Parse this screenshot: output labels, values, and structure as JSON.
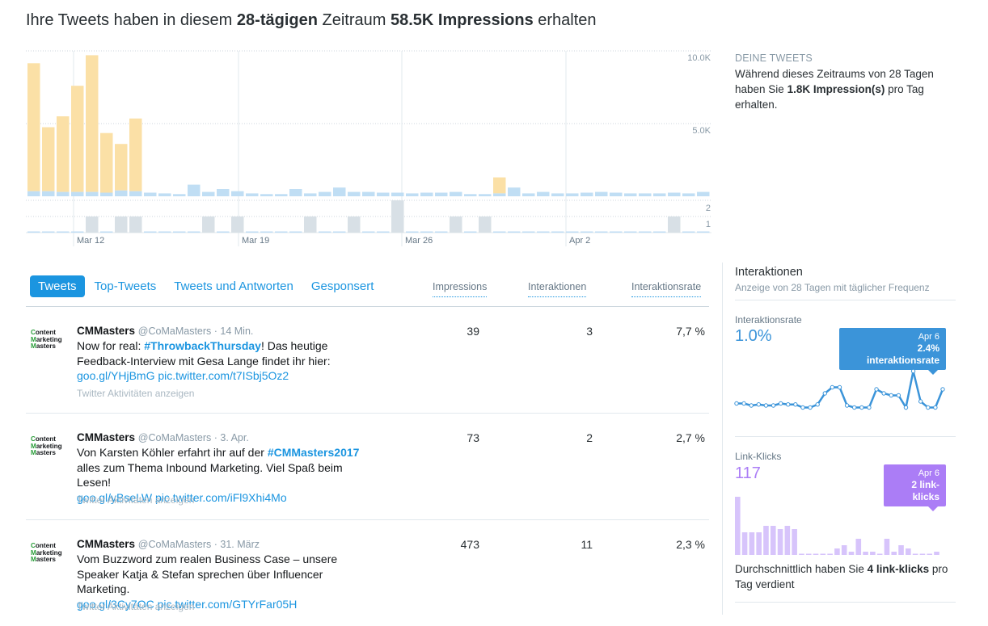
{
  "headline": {
    "pre": "Ihre Tweets haben in diesem ",
    "period": "28-tägigen",
    "mid": " Zeitraum ",
    "impressions": "58.5K Impressions",
    "post": " erhalten"
  },
  "chart_data": {
    "type": "bar",
    "title": "",
    "x_ticks": [
      "Mar 12",
      "Mar 19",
      "Mar 26",
      "Apr 2"
    ],
    "y_ticks": [
      "10.0K",
      "5.0K"
    ],
    "ylim": [
      0,
      10000
    ],
    "series": [
      {
        "name": "",
        "color": "#fbe0a6",
        "values": [
          8800,
          4400,
          5200,
          7300,
          9400,
          4100,
          3200,
          5000,
          0,
          0,
          0,
          0,
          0,
          0,
          0,
          0,
          0,
          0,
          0,
          0,
          0,
          0,
          0,
          0,
          0,
          0,
          0,
          0,
          0,
          0,
          0,
          0,
          1100,
          0,
          0,
          0,
          0,
          0,
          0,
          0,
          0,
          0,
          0,
          0,
          0,
          0,
          0
        ]
      },
      {
        "name": "",
        "color": "#c0def4",
        "values": [
          350,
          350,
          300,
          300,
          300,
          250,
          400,
          350,
          250,
          200,
          150,
          800,
          300,
          500,
          350,
          200,
          150,
          150,
          500,
          200,
          300,
          600,
          300,
          300,
          250,
          250,
          200,
          250,
          250,
          300,
          150,
          150,
          200,
          600,
          200,
          300,
          200,
          200,
          250,
          300,
          250,
          200,
          200,
          200,
          250,
          200,
          300
        ]
      },
      {
        "name": "",
        "color": "#d8e0e6",
        "values": [
          0,
          0,
          0,
          0,
          1,
          0,
          1,
          1,
          0,
          0,
          0,
          0,
          1,
          0,
          1,
          0,
          0,
          0,
          0,
          1,
          0,
          0,
          1,
          0,
          0,
          2,
          0,
          0,
          0,
          1,
          0,
          1,
          0,
          0,
          0,
          0,
          0,
          0,
          0,
          0,
          0,
          0,
          0,
          0,
          1,
          0,
          0
        ]
      },
      {
        "name": "",
        "y_ticks": [
          "2",
          "1"
        ]
      }
    ]
  },
  "your_tweets": {
    "caption": "DEINE TWEETS",
    "line1": "Während dieses Zeitraums von 28 Tagen haben Sie ",
    "value": "1.8K Impression(s)",
    "line2": " pro Tag erhalten."
  },
  "tabs": [
    "Tweets",
    "Top-Tweets",
    "Tweets und Antworten",
    "Gesponsert"
  ],
  "columns": [
    "Impressions",
    "Interaktionen",
    "Interaktionsrate"
  ],
  "logo": {
    "l1": "C",
    "l1b": "ontent",
    "l2": "M",
    "l2b": "arketing",
    "l3": "M",
    "l3b": "asters"
  },
  "tweets": [
    {
      "name": "CMMasters",
      "handle": "@CoMaMasters · 14 Min.",
      "text_pre": "Now for real: ",
      "tag": "#ThrowbackThursday",
      "text_post": "! Das heutige Feedback-Interview mit Gesa Lange findet ihr hier:",
      "link1": "goo.gl/YHjBmG",
      "link2": "pic.twitter.com/t7ISbj5Oz2",
      "activity": "Twitter Aktivitäten anzeigen",
      "impressions": "39",
      "interactions": "3",
      "rate": "7,7 %"
    },
    {
      "name": "CMMasters",
      "handle": "@CoMaMasters · 3. Apr.",
      "text_pre": "Von Karsten Köhler erfahrt ihr auf der ",
      "tag": "#CMMasters2017",
      "text_post": " alles zum Thema Inbound Marketing. Viel Spaß beim Lesen!",
      "link1": "goo.gl/yBseLW",
      "link2": "pic.twitter.com/iFl9Xhi4Mo",
      "activity": "Twitter Aktivitäten anzeigen",
      "impressions": "73",
      "interactions": "2",
      "rate": "2,7 %"
    },
    {
      "name": "CMMasters",
      "handle": "@CoMaMasters · 31. März",
      "text_pre": "Vom Buzzword zum realen Business Case – unsere Speaker Katja & Stefan sprechen über Influencer Marketing.",
      "tag": "",
      "text_post": "",
      "link1": "goo.gl/3Cy7OC",
      "link2": "pic.twitter.com/GTYrFar05H",
      "activity": "Twitter Aktivitäten anzeigen",
      "impressions": "473",
      "interactions": "11",
      "rate": "2,3 %"
    }
  ],
  "interactions": {
    "title": "Interaktionen",
    "subtitle": "Anzeige von 28 Tagen mit täglicher Frequenz",
    "rate_label": "Interaktionsrate",
    "rate_value": "1.0%",
    "rate_tip_date": "Apr 6",
    "rate_tip_value": "2.4% interaktionsrate",
    "rate_series": [
      0.5,
      0.5,
      0.4,
      0.45,
      0.4,
      0.4,
      0.5,
      0.45,
      0.45,
      0.3,
      0.3,
      0.45,
      1.0,
      1.3,
      1.3,
      0.4,
      0.3,
      0.3,
      0.3,
      1.2,
      1.0,
      0.9,
      0.9,
      0.3,
      2.1,
      0.6,
      0.3,
      0.3,
      1.2
    ],
    "clicks_label": "Link-Klicks",
    "clicks_value": "117",
    "clicks_tip_date": "Apr 6",
    "clicks_tip_value": "2 link-klicks",
    "clicks_series": [
      18,
      7,
      7,
      7,
      9,
      9,
      8,
      9,
      8,
      0,
      0,
      0,
      0,
      0,
      2,
      3,
      1,
      5,
      1,
      1,
      0,
      5,
      1,
      3,
      2,
      0,
      0,
      0,
      1
    ],
    "avg_pre": "Durchschnittlich haben Sie ",
    "avg_value": "4 link-klicks",
    "avg_post": " pro Tag verdient"
  }
}
